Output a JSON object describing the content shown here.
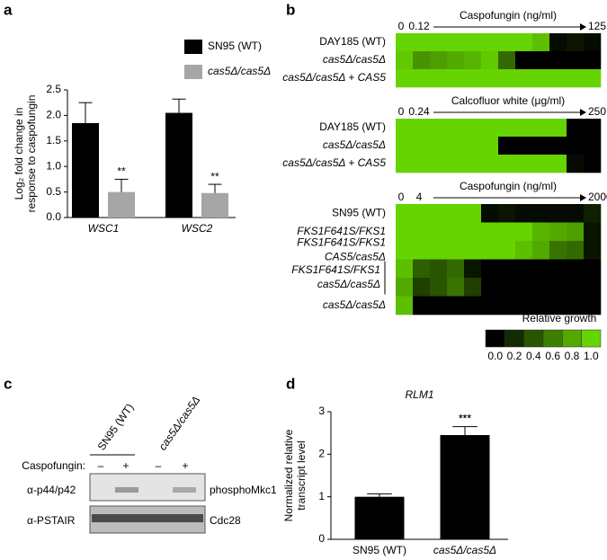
{
  "chart_data": [
    {
      "type": "bar",
      "panel": "a",
      "ylabel": [
        "Log₂ fold change in",
        "response to caspofungin"
      ],
      "categories": [
        "WSC1",
        "WSC2"
      ],
      "series": [
        {
          "name": "SN95 (WT)",
          "color": "#000000",
          "values": [
            1.85,
            2.05
          ],
          "errors": [
            0.4,
            0.27
          ]
        },
        {
          "name": "cas5Δ/cas5Δ",
          "color": "#a6a6a6",
          "values": [
            0.5,
            0.48
          ],
          "errors": [
            0.25,
            0.17
          ],
          "annotations": [
            "**",
            "**"
          ]
        }
      ],
      "ylim": [
        0,
        2.5
      ],
      "yticks": [
        {
          "value": 0,
          "label": "0.0"
        },
        0.5,
        {
          "value": 1,
          "label": "1.0"
        },
        1.5,
        {
          "value": 2,
          "label": "2.0"
        },
        2.5
      ],
      "legend": "upper right"
    },
    {
      "type": "heatmap",
      "panel": "b",
      "blocks": [
        {
          "title": "Caspofungin (ng/ml)",
          "start_ticks": [
            0,
            0.12
          ],
          "end_tick": 125,
          "rows": [
            {
              "label": [
                "DAY185 (WT)"
              ],
              "values": [
                1,
                1,
                1,
                1,
                1,
                1,
                1,
                1,
                0.9,
                0.05,
                0.1,
                0.05
              ]
            },
            {
              "label": [
                "cas5Δ/cas5Δ"
              ],
              "values": [
                0.95,
                0.7,
                0.75,
                0.8,
                0.85,
                0.95,
                0.5,
                0,
                0,
                0,
                0,
                0
              ]
            },
            {
              "label": [
                "cas5Δ/cas5Δ + CAS5"
              ],
              "values": [
                1,
                1,
                1,
                1,
                1,
                1,
                1,
                1,
                1,
                1,
                1,
                1
              ]
            }
          ]
        },
        {
          "title": "Calcofluor white (μg/ml)",
          "start_ticks": [
            0,
            0.24
          ],
          "end_tick": 250,
          "rows": [
            {
              "label": [
                "DAY185 (WT)"
              ],
              "values": [
                1,
                1,
                1,
                1,
                1,
                1,
                1,
                1,
                1,
                1,
                0,
                0
              ]
            },
            {
              "label": [
                "cas5Δ/cas5Δ"
              ],
              "values": [
                1,
                1,
                1,
                1,
                1,
                1,
                0,
                0,
                0,
                0,
                0,
                0
              ]
            },
            {
              "label": [
                "cas5Δ/cas5Δ + CAS5"
              ],
              "values": [
                1,
                1,
                1,
                1,
                1,
                1,
                1,
                1,
                1,
                1,
                0.05,
                0
              ]
            }
          ]
        },
        {
          "title": "Caspofungin (ng/ml)",
          "start_ticks": [
            0,
            4
          ],
          "end_tick": 2000,
          "rows": [
            {
              "label": [
                "SN95 (WT)"
              ],
              "values": [
                1,
                1,
                1,
                1,
                1,
                0.05,
                0.1,
                0.05,
                0.05,
                0.05,
                0.05,
                0.15
              ]
            },
            {
              "label": [
                "FKS1F641S/FKS1"
              ],
              "values": [
                1,
                1,
                1,
                1,
                1,
                1,
                1,
                1,
                0.85,
                0.8,
                0.75,
                0.1
              ]
            },
            {
              "label": [
                "FKS1F641S/FKS1",
                "CAS5/cas5Δ"
              ],
              "values": [
                1,
                1,
                1,
                1,
                1,
                1,
                1,
                0.9,
                0.8,
                0.55,
                0.5,
                0.1
              ]
            },
            {
              "label": [
                "FKS1F641S/FKS1",
                "cas5Δ/cas5Δ"
              ],
              "values": [
                0.9,
                0.45,
                0.4,
                0.5,
                0.1,
                0,
                0,
                0,
                0,
                0,
                0,
                0
              ]
            },
            {
              "label": null,
              "values": [
                0.8,
                0.3,
                0.4,
                0.55,
                0.3,
                0,
                0,
                0,
                0,
                0,
                0,
                0
              ]
            },
            {
              "label": [
                "cas5Δ/cas5Δ"
              ],
              "values": [
                0.9,
                0,
                0,
                0,
                0,
                0,
                0,
                0,
                0,
                0,
                0,
                0
              ]
            }
          ]
        }
      ],
      "colorbar": {
        "title": "Relative growth",
        "colors": [
          "#000000",
          "#66d400"
        ],
        "ticks": [
          {
            "value": 0,
            "label": "0.0"
          },
          0.2,
          0.4,
          0.6,
          0.8,
          {
            "value": 1,
            "label": "1.0"
          }
        ]
      }
    },
    {
      "type": "bar",
      "panel": "d",
      "title": "RLM1",
      "ylabel": [
        "Normalized relative",
        "transcript level"
      ],
      "categories": [
        "SN95 (WT)",
        "cas5Δ/cas5Δ"
      ],
      "values": [
        1.0,
        2.45
      ],
      "errors": [
        0.07,
        0.2
      ],
      "color": "#000000",
      "annotations": [
        null,
        "***"
      ],
      "ylim": [
        0,
        3
      ],
      "yticks": [
        0,
        1,
        2,
        3
      ]
    }
  ],
  "blot": {
    "panel": "c",
    "lanes": [
      "SN95 (WT)",
      "cas5Δ/cas5Δ"
    ],
    "treatment_label": "Caspofungin:",
    "treatment": [
      "–",
      "+",
      "–",
      "+"
    ],
    "rows": [
      {
        "antibody": "α-p44/p42",
        "target": "phosphoMkc1"
      },
      {
        "antibody": "α-PSTAIR",
        "target": "Cdc28"
      }
    ]
  }
}
